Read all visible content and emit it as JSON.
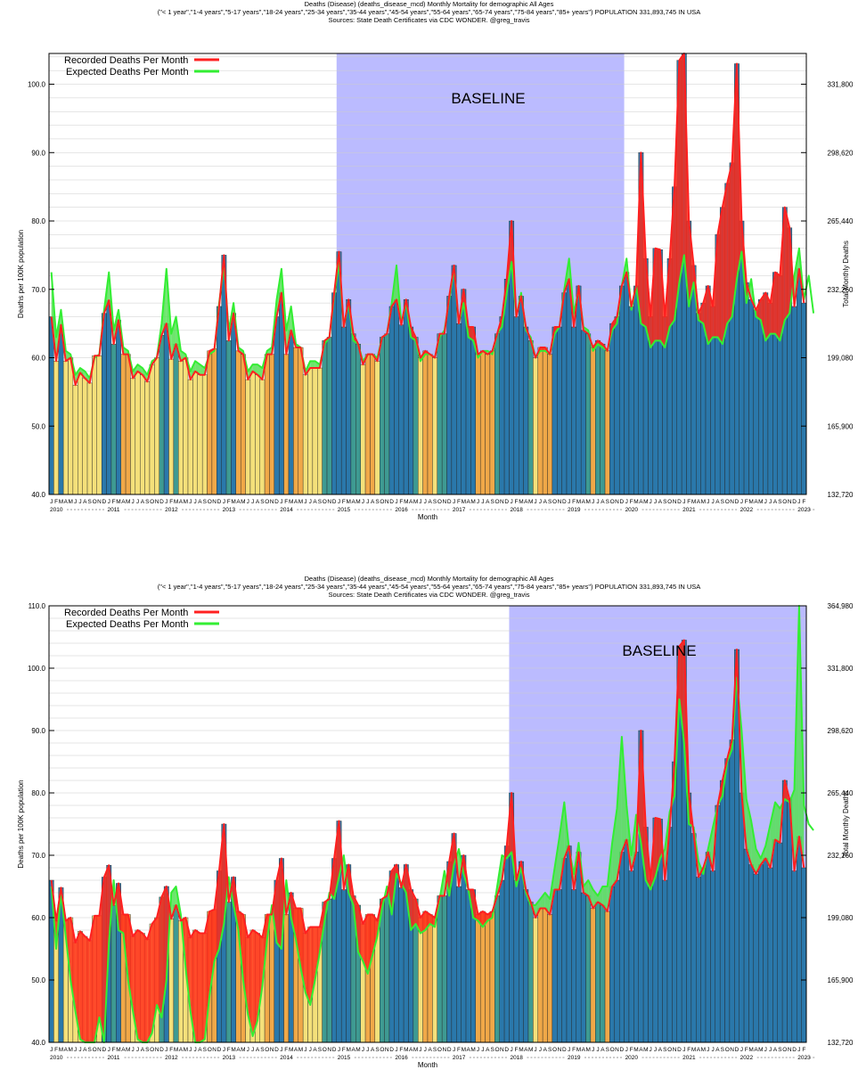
{
  "charts": [
    {
      "title": "Deaths (Disease) (deaths_disease_mcd) Monthly Mortality for demographic All Ages",
      "subtitle": "(\"< 1 year\",\"1-4 years\",\"5-17 years\",\"18-24 years\",\"25-34 years\",\"35-44 years\",\"45-54 years\",\"55-64 years\",\"65-74 years\",\"75-84 years\",\"85+ years\") POPULATION 331,893,745 IN USA",
      "source": "Sources: State Death Certificates via CDC WONDER.  @greg_travis",
      "baseline_label": "BASELINE",
      "xlabel": "Month",
      "ylabel": "Deaths per 100K population",
      "y2label": "Total Monthly Deaths",
      "legend": [
        "Recorded Deaths Per Month",
        "Expected Deaths Per Month"
      ]
    },
    {
      "title": "Deaths (Disease) (deaths_disease_mcd) Monthly Mortality for demographic All Ages",
      "subtitle": "(\"< 1 year\",\"1-4 years\",\"5-17 years\",\"18-24 years\",\"25-34 years\",\"35-44 years\",\"45-54 years\",\"55-64 years\",\"65-74 years\",\"75-84 years\",\"85+ years\") POPULATION 331,893,745 IN USA",
      "source": "Sources: State Death Certificates via CDC WONDER.  @greg_travis",
      "baseline_label": "BASELINE",
      "xlabel": "Month",
      "ylabel": "Deaths per 100K population",
      "y2label": "Total Monthly Deaths",
      "legend": [
        "Recorded Deaths Per Month",
        "Expected Deaths Per Month"
      ]
    }
  ],
  "chart_data": [
    {
      "type": "bar",
      "title": "Deaths (Disease) (deaths_disease_mcd) Monthly Mortality for demographic All Ages",
      "xlabel": "Month",
      "ylabel": "Deaths per 100K population",
      "y2label": "Total Monthly Deaths",
      "ylim": [
        40,
        104.5
      ],
      "yticks": [
        "40.0",
        "50.0",
        "60.0",
        "70.0",
        "80.0",
        "90.0",
        "100.0"
      ],
      "y2ticks": [
        "132,720",
        "165,900",
        "199,080",
        "232,260",
        "265,440",
        "298,620",
        "331,800"
      ],
      "month_letters": [
        "J",
        "F",
        "M",
        "A",
        "M",
        "J",
        "J",
        "A",
        "S",
        "O",
        "N",
        "D"
      ],
      "years": [
        "2010",
        "2011",
        "2012",
        "2013",
        "2014",
        "2015",
        "2016",
        "2017",
        "2018",
        "2019",
        "2020",
        "2021",
        "2022",
        "2023"
      ],
      "baseline_range": [
        "2015-01",
        "2019-12"
      ],
      "series": [
        {
          "name": "Recorded Deaths Per Month",
          "color": "#ff2020",
          "values": [
            66.0,
            59.5,
            64.8,
            59.5,
            60.0,
            56.0,
            57.8,
            57.0,
            56.3,
            60.3,
            60.3,
            66.5,
            68.4,
            62.0,
            65.5,
            60.5,
            60.5,
            57.0,
            58.0,
            57.5,
            56.5,
            59.0,
            60.0,
            63.3,
            65.0,
            59.8,
            62.0,
            59.5,
            60.0,
            56.8,
            58.0,
            57.5,
            57.5,
            61.0,
            61.3,
            67.5,
            75.0,
            62.5,
            66.5,
            61.0,
            60.5,
            56.8,
            58.0,
            57.5,
            56.8,
            60.5,
            60.5,
            66.0,
            69.5,
            60.5,
            64.0,
            61.5,
            61.5,
            57.5,
            58.5,
            58.5,
            58.5,
            62.5,
            63.0,
            69.5,
            75.5,
            64.5,
            68.5,
            63.5,
            62.0,
            59.0,
            60.5,
            60.5,
            59.5,
            63.0,
            63.5,
            67.5,
            68.5,
            64.8,
            68.5,
            64.5,
            63.0,
            60.0,
            61.0,
            60.5,
            60.0,
            63.5,
            63.5,
            69.0,
            73.5,
            65.0,
            70.0,
            64.5,
            64.5,
            60.5,
            61.0,
            60.5,
            61.0,
            63.5,
            66.0,
            71.5,
            80.0,
            66.0,
            69.0,
            64.5,
            62.5,
            60.0,
            61.5,
            61.5,
            60.5,
            64.5,
            64.5,
            69.5,
            71.5,
            64.5,
            70.5,
            64.0,
            63.5,
            61.5,
            62.5,
            62.0,
            61.0,
            65.0,
            66.0,
            70.5,
            72.5,
            67.5,
            70.5,
            90.0,
            74.5,
            66.0,
            76.0,
            75.8,
            66.0,
            74.5,
            85.0,
            103.5,
            104.5,
            80.0,
            73.5,
            66.5,
            68.0,
            70.5,
            67.5,
            78.0,
            82.0,
            85.5,
            88.5,
            103.0,
            80.0,
            71.0,
            68.5,
            67.0,
            68.5,
            69.5,
            68.0,
            72.5,
            72.0,
            82.0,
            79.0,
            67.5,
            73.0,
            68.0
          ]
        },
        {
          "name": "Expected Deaths Per Month",
          "color": "#33ee33",
          "values": [
            72.5,
            63.0,
            67.0,
            61.0,
            60.5,
            57.5,
            58.5,
            58.0,
            57.0,
            60.0,
            60.5,
            67.0,
            72.5,
            64.0,
            67.0,
            61.5,
            61.0,
            58.0,
            59.0,
            58.5,
            57.5,
            59.5,
            60.0,
            65.0,
            73.0,
            63.5,
            66.0,
            61.0,
            60.5,
            58.0,
            59.5,
            59.0,
            58.5,
            60.5,
            61.0,
            68.0,
            73.5,
            64.0,
            68.0,
            61.5,
            61.0,
            58.0,
            59.0,
            59.0,
            58.5,
            61.0,
            61.5,
            68.5,
            73.0,
            64.0,
            67.5,
            62.0,
            61.5,
            58.0,
            59.5,
            59.5,
            59.0,
            62.0,
            63.0,
            69.0,
            74.0,
            64.5,
            68.0,
            62.5,
            62.0,
            59.5,
            60.5,
            60.5,
            60.0,
            63.0,
            63.5,
            68.0,
            73.5,
            65.0,
            68.0,
            63.0,
            62.5,
            59.5,
            60.5,
            60.5,
            60.0,
            63.0,
            64.0,
            68.5,
            73.0,
            65.0,
            68.0,
            63.0,
            62.5,
            60.0,
            61.0,
            61.0,
            60.5,
            63.5,
            64.5,
            69.5,
            74.0,
            66.0,
            69.5,
            64.0,
            63.0,
            60.0,
            61.0,
            61.0,
            60.5,
            63.5,
            64.5,
            70.0,
            74.5,
            66.5,
            70.0,
            64.5,
            64.0,
            61.0,
            62.0,
            61.5,
            61.0,
            64.0,
            65.0,
            70.5,
            74.5,
            67.0,
            70.5,
            65.0,
            64.5,
            61.5,
            62.5,
            62.5,
            61.5,
            64.5,
            65.5,
            71.0,
            75.0,
            67.5,
            71.0,
            65.5,
            65.0,
            62.0,
            63.0,
            63.0,
            62.0,
            65.0,
            66.0,
            71.5,
            75.5,
            68.0,
            71.5,
            66.0,
            65.5,
            62.5,
            63.5,
            63.5,
            62.5,
            65.5,
            66.5,
            72.0,
            76.0,
            68.5,
            72.0,
            66.5
          ]
        }
      ]
    },
    {
      "type": "bar",
      "title": "Deaths (Disease) (deaths_disease_mcd) Monthly Mortality for demographic All Ages",
      "xlabel": "Month",
      "ylabel": "Deaths per 100K population",
      "y2label": "Total Monthly Deaths",
      "ylim": [
        40,
        110
      ],
      "yticks": [
        "40.0",
        "50.0",
        "60.0",
        "70.0",
        "80.0",
        "90.0",
        "100.0",
        "110.0"
      ],
      "y2ticks": [
        "132,720",
        "165,900",
        "199,080",
        "232,260",
        "265,440",
        "298,620",
        "331,800",
        "364,980"
      ],
      "month_letters": [
        "J",
        "F",
        "M",
        "A",
        "M",
        "J",
        "J",
        "A",
        "S",
        "O",
        "N",
        "D"
      ],
      "years": [
        "2010",
        "2011",
        "2012",
        "2013",
        "2014",
        "2015",
        "2016",
        "2017",
        "2018",
        "2019",
        "2020",
        "2021",
        "2022",
        "2023"
      ],
      "baseline_range": [
        "2018-01",
        "2023-04"
      ],
      "series": [
        {
          "name": "Recorded Deaths Per Month",
          "color": "#ff2020",
          "values": [
            66.0,
            59.5,
            64.8,
            59.5,
            60.0,
            56.0,
            57.8,
            57.0,
            56.3,
            60.3,
            60.3,
            66.5,
            68.4,
            62.0,
            65.5,
            60.5,
            60.5,
            57.0,
            58.0,
            57.5,
            56.5,
            59.0,
            60.0,
            63.3,
            65.0,
            59.8,
            62.0,
            59.5,
            60.0,
            56.8,
            58.0,
            57.5,
            57.5,
            61.0,
            61.3,
            67.5,
            75.0,
            62.5,
            66.5,
            61.0,
            60.5,
            56.8,
            58.0,
            57.5,
            56.8,
            60.5,
            60.5,
            66.0,
            69.5,
            60.5,
            64.0,
            61.5,
            61.5,
            57.5,
            58.5,
            58.5,
            58.5,
            62.5,
            63.0,
            69.5,
            75.5,
            64.5,
            68.5,
            63.5,
            62.0,
            59.0,
            60.5,
            60.5,
            59.5,
            63.0,
            63.5,
            67.5,
            68.5,
            64.8,
            68.5,
            64.5,
            63.0,
            60.0,
            61.0,
            60.5,
            60.0,
            63.5,
            63.5,
            69.0,
            73.5,
            65.0,
            70.0,
            64.5,
            64.5,
            60.5,
            61.0,
            60.5,
            61.0,
            63.5,
            66.0,
            71.5,
            80.0,
            66.0,
            69.0,
            64.5,
            62.5,
            60.0,
            61.5,
            61.5,
            60.5,
            64.5,
            64.5,
            69.5,
            71.5,
            64.5,
            70.5,
            64.0,
            63.5,
            61.5,
            62.5,
            62.0,
            61.0,
            65.0,
            66.0,
            70.5,
            72.5,
            67.5,
            70.5,
            90.0,
            74.5,
            66.0,
            76.0,
            75.8,
            66.0,
            74.5,
            85.0,
            103.5,
            104.5,
            80.0,
            73.5,
            66.5,
            68.0,
            70.5,
            67.5,
            78.0,
            82.0,
            85.5,
            88.5,
            103.0,
            80.0,
            71.0,
            68.5,
            67.0,
            68.5,
            69.5,
            68.0,
            72.5,
            72.0,
            82.0,
            79.0,
            67.5,
            73.0,
            68.0
          ]
        },
        {
          "name": "Expected Deaths Per Month",
          "color": "#33ee33",
          "values": [
            65.0,
            55.0,
            64.0,
            57.0,
            50.0,
            45.0,
            40.5,
            38.5,
            38.0,
            40.0,
            44.0,
            38.0,
            56.0,
            66.0,
            58.0,
            57.5,
            50.0,
            45.0,
            40.5,
            38.5,
            38.0,
            41.5,
            46.0,
            44.0,
            50.0,
            64.0,
            65.0,
            60.5,
            52.0,
            45.0,
            39.5,
            40.0,
            40.5,
            47.5,
            53.0,
            55.0,
            59.0,
            66.5,
            62.0,
            58.0,
            50.0,
            44.5,
            41.0,
            43.5,
            49.0,
            56.5,
            62.0,
            56.0,
            55.0,
            66.0,
            60.0,
            56.5,
            52.0,
            48.0,
            46.0,
            50.0,
            54.5,
            59.5,
            64.0,
            63.0,
            66.5,
            70.0,
            64.0,
            62.0,
            54.5,
            53.0,
            51.0,
            54.0,
            57.0,
            61.5,
            65.0,
            60.5,
            67.0,
            65.5,
            64.0,
            58.0,
            59.0,
            57.5,
            58.0,
            59.0,
            58.5,
            63.0,
            67.5,
            63.5,
            68.5,
            71.0,
            67.0,
            64.5,
            60.0,
            59.5,
            58.5,
            59.5,
            60.0,
            65.0,
            70.0,
            69.5,
            70.5,
            65.0,
            68.0,
            64.0,
            62.0,
            62.0,
            63.0,
            64.0,
            63.0,
            68.0,
            73.0,
            78.5,
            71.0,
            67.0,
            72.0,
            65.0,
            66.0,
            64.5,
            63.5,
            65.0,
            65.0,
            72.0,
            77.5,
            89.0,
            78.0,
            70.0,
            76.5,
            72.0,
            66.0,
            64.5,
            66.5,
            69.5,
            71.0,
            77.0,
            79.5,
            95.0,
            88.0,
            75.0,
            74.5,
            69.0,
            67.0,
            71.0,
            74.5,
            78.0,
            79.5,
            85.0,
            87.0,
            98.5,
            90.0,
            79.0,
            75.5,
            71.0,
            69.5,
            71.5,
            75.0,
            78.5,
            77.5,
            79.0,
            78.5,
            80.5,
            111.0,
            78.0,
            75.0,
            74.0
          ]
        }
      ]
    }
  ]
}
